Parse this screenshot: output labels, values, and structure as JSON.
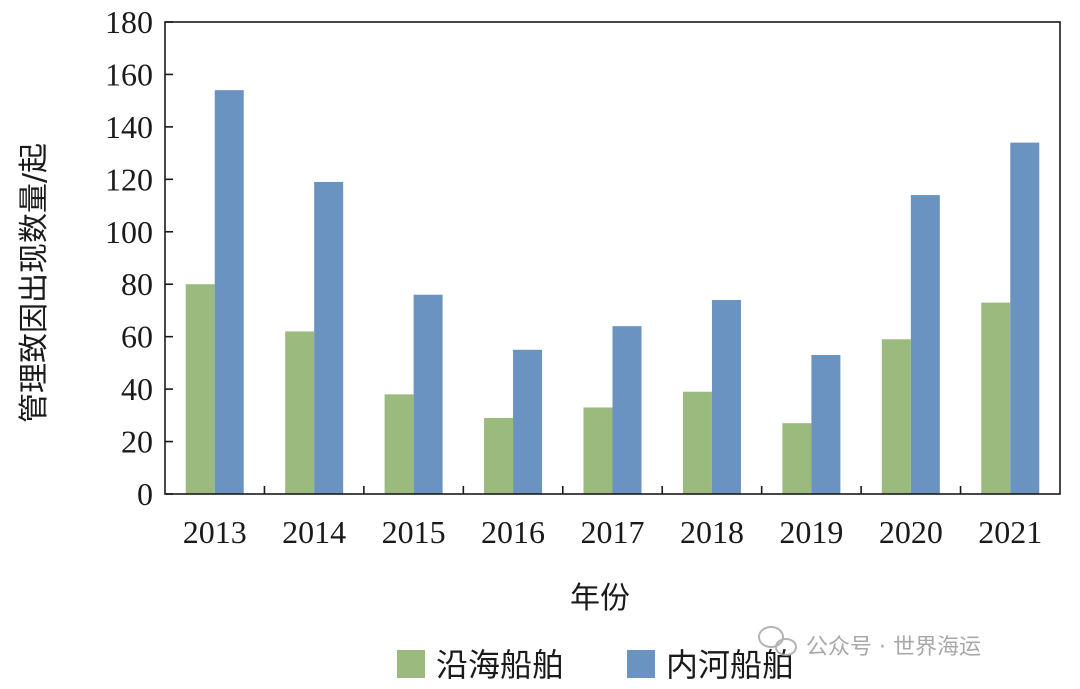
{
  "chart_data": {
    "type": "bar",
    "categories": [
      "2013",
      "2014",
      "2015",
      "2016",
      "2017",
      "2018",
      "2019",
      "2020",
      "2021"
    ],
    "series": [
      {
        "name": "沿海船舶",
        "color": "#9bbb7e",
        "values": [
          80,
          62,
          38,
          29,
          33,
          39,
          27,
          59,
          73
        ]
      },
      {
        "name": "内河船舶",
        "color": "#6a93c2",
        "values": [
          154,
          119,
          76,
          55,
          64,
          74,
          53,
          114,
          134
        ]
      }
    ],
    "xlabel": "年份",
    "ylabel": "管理致因出现数量/起",
    "ylim": [
      0,
      180
    ],
    "yticks": [
      "0",
      "20",
      "40",
      "60",
      "80",
      "100",
      "120",
      "140",
      "160",
      "180"
    ],
    "grid": false,
    "legend_position": "bottom"
  },
  "watermark": {
    "text": "公众号 · 世界海运",
    "icon": "wechat-icon"
  }
}
